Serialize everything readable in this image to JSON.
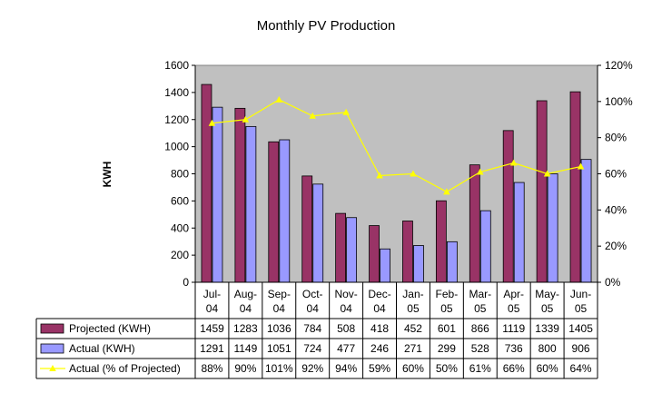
{
  "chart_data": {
    "type": "bar",
    "title": "Monthly PV Production",
    "ylabel": "KWH",
    "y2label": "",
    "ylim": [
      0,
      1600
    ],
    "y_ticks": [
      "0",
      "200",
      "400",
      "600",
      "800",
      "1000",
      "1200",
      "1400",
      "1600"
    ],
    "y2lim": [
      0,
      120
    ],
    "y2_ticks": [
      "0%",
      "20%",
      "40%",
      "60%",
      "80%",
      "100%",
      "120%"
    ],
    "categories": [
      "Jul-04",
      "Aug-04",
      "Sep-04",
      "Oct-04",
      "Nov-04",
      "Dec-04",
      "Jan-05",
      "Feb-05",
      "Mar-05",
      "Apr-05",
      "May-05",
      "Jun-05"
    ],
    "category_lines": [
      [
        "Jul-",
        "04"
      ],
      [
        "Aug-",
        "04"
      ],
      [
        "Sep-",
        "04"
      ],
      [
        "Oct-",
        "04"
      ],
      [
        "Nov-",
        "04"
      ],
      [
        "Dec-",
        "04"
      ],
      [
        "Jan-",
        "05"
      ],
      [
        "Feb-",
        "05"
      ],
      [
        "Mar-",
        "05"
      ],
      [
        "Apr-",
        "05"
      ],
      [
        "May-",
        "05"
      ],
      [
        "Jun-",
        "05"
      ]
    ],
    "plot_background": "#c0c0c0",
    "grid": false,
    "legend": "data-table",
    "series": [
      {
        "name": "Projected (KWH)",
        "kind": "bar",
        "axis": "left",
        "color": "#993366",
        "values": [
          1459,
          1283,
          1036,
          784,
          508,
          418,
          452,
          601,
          866,
          1119,
          1339,
          1405
        ],
        "labels": [
          "1459",
          "1283",
          "1036",
          "784",
          "508",
          "418",
          "452",
          "601",
          "866",
          "1119",
          "1339",
          "1405"
        ]
      },
      {
        "name": "Actual (KWH)",
        "kind": "bar",
        "axis": "left",
        "color": "#9999ff",
        "values": [
          1291,
          1149,
          1051,
          724,
          477,
          246,
          271,
          299,
          528,
          736,
          800,
          906
        ],
        "labels": [
          "1291",
          "1149",
          "1051",
          "724",
          "477",
          "246",
          "271",
          "299",
          "528",
          "736",
          "800",
          "906"
        ]
      },
      {
        "name": "Actual (% of Projected)",
        "kind": "line",
        "axis": "right",
        "color": "#ffff00",
        "values": [
          88,
          90,
          101,
          92,
          94,
          59,
          60,
          50,
          61,
          66,
          60,
          64
        ],
        "labels": [
          "88%",
          "90%",
          "101%",
          "92%",
          "94%",
          "59%",
          "60%",
          "50%",
          "61%",
          "66%",
          "60%",
          "64%"
        ]
      }
    ]
  }
}
